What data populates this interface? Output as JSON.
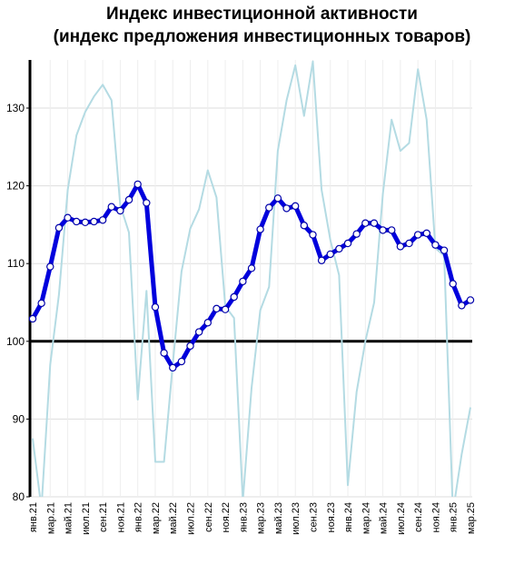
{
  "chart_data": {
    "type": "line",
    "title": "Индекс инвестиционной активности",
    "subtitle": "(индекс предложения инвестиционных товаров)",
    "xlabel": "",
    "ylabel": "",
    "ylim": [
      80,
      136
    ],
    "yticks": [
      80,
      90,
      100,
      110,
      120,
      130
    ],
    "reference_line": 100,
    "grid": true,
    "legend": "none",
    "x": [
      "янв.21",
      "фев.21",
      "мар.21",
      "апр.21",
      "май.21",
      "июн.21",
      "июл.21",
      "авг.21",
      "сен.21",
      "окт.21",
      "ноя.21",
      "дек.21",
      "янв.22",
      "фев.22",
      "мар.22",
      "апр.22",
      "май.22",
      "июн.22",
      "июл.22",
      "авг.22",
      "сен.22",
      "окт.22",
      "ноя.22",
      "дек.22",
      "янв.23",
      "фев.23",
      "мар.23",
      "апр.23",
      "май.23",
      "июн.23",
      "июл.23",
      "авг.23",
      "сен.23",
      "окт.23",
      "ноя.23",
      "дек.23",
      "янв.24",
      "фев.24",
      "мар.24",
      "апр.24",
      "май.24",
      "июн.24",
      "июл.24",
      "авг.24",
      "сен.24",
      "окт.24",
      "ноя.24",
      "дек.24",
      "янв.25",
      "фев.25",
      "мар.25"
    ],
    "xtick_labels": [
      "янв.21",
      "мар.21",
      "май.21",
      "июл.21",
      "сен.21",
      "ноя.21",
      "янв.22",
      "мар.22",
      "май.22",
      "июл.22",
      "сен.22",
      "ноя.22",
      "янв.23",
      "мар.23",
      "май.23",
      "июл.23",
      "сен.23",
      "ноя.23",
      "янв.24",
      "мар.24",
      "май.24",
      "июл.24",
      "сен.24",
      "ноя.24",
      "янв.25",
      "мар.25"
    ],
    "series": [
      {
        "style": "thin",
        "color": "#b4dbe3",
        "values": [
          87.5,
          78.5,
          97,
          106,
          119.5,
          126.5,
          129.5,
          131.5,
          133,
          131,
          117.5,
          114,
          92.5,
          106.5,
          84.5,
          84.5,
          97,
          109,
          114.5,
          117,
          122,
          118.5,
          104.5,
          103,
          79.5,
          94,
          104,
          107,
          124.5,
          131,
          135.5,
          129,
          136,
          119.5,
          113,
          108.5,
          81.5,
          93.5,
          100,
          105,
          119,
          128.5,
          124.5,
          125.5,
          135,
          128.5,
          112,
          111,
          78,
          85.5,
          91.5
        ]
      },
      {
        "style": "bold",
        "color": "#0000dd",
        "values": [
          102.9,
          104.9,
          109.6,
          114.6,
          115.9,
          115.4,
          115.3,
          115.4,
          115.6,
          117.3,
          116.8,
          118.2,
          120.2,
          117.8,
          104.4,
          98.5,
          96.6,
          97.4,
          99.4,
          101.2,
          102.4,
          104.2,
          104.1,
          105.7,
          107.7,
          109.4,
          114.4,
          117.2,
          118.4,
          117.1,
          117.4,
          114.9,
          113.7,
          110.4,
          111.2,
          111.9,
          112.6,
          113.8,
          115.2,
          115.2,
          114.3,
          114.3,
          112.2,
          112.6,
          113.7,
          113.9,
          112.4,
          111.7,
          107.4,
          104.6,
          105.3
        ]
      }
    ]
  }
}
